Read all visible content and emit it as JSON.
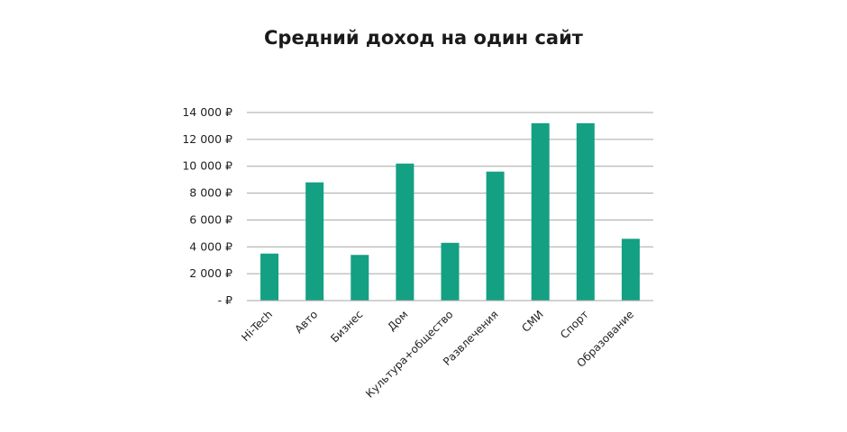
{
  "chart_data": {
    "type": "bar",
    "title": "Средний доход на один сайт",
    "xlabel": "",
    "ylabel": "",
    "categories": [
      "Hi-Tech",
      "Авто",
      "Бизнес",
      "Дом",
      "Культура+общество",
      "Развлечения",
      "СМИ",
      "Спорт",
      "Образование"
    ],
    "values": [
      3500,
      8800,
      3400,
      10200,
      4300,
      9600,
      13200,
      13200,
      4600
    ],
    "ylim": [
      0,
      14000
    ],
    "yticks": [
      0,
      2000,
      4000,
      6000,
      8000,
      10000,
      12000,
      14000
    ],
    "ytick_labels": [
      "-  ₽",
      "2 000 ₽",
      "4 000 ₽",
      "6 000 ₽",
      "8 000 ₽",
      "10 000 ₽",
      "12 000 ₽",
      "14 000 ₽"
    ],
    "grid": true,
    "legend": "none",
    "bar_color": "#14a083",
    "grid_color": "#a6a6a6"
  }
}
